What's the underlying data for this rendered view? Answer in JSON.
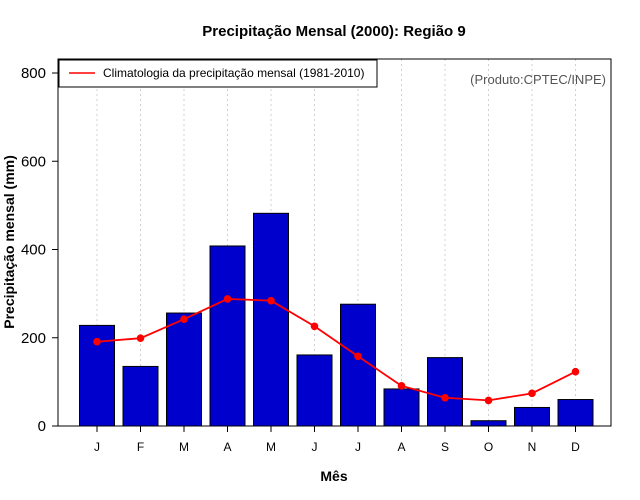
{
  "chart_data": {
    "type": "bar",
    "title": "Precipitação Mensal (2000): Região 9",
    "xlabel": "Mês",
    "ylabel": "Precipitação mensal (mm)",
    "ylim": [
      0,
      800
    ],
    "yticks": [
      0,
      200,
      400,
      600,
      800
    ],
    "categories": [
      "J",
      "F",
      "M",
      "A",
      "M",
      "J",
      "J",
      "A",
      "S",
      "O",
      "N",
      "D"
    ],
    "grid": "vertical dotted",
    "series": [
      {
        "name": "Precipitação mensal (2000)",
        "type": "bar",
        "color": "#0000CD",
        "values": [
          228,
          135,
          256,
          408,
          482,
          161,
          276,
          84,
          155,
          12,
          42,
          60
        ]
      },
      {
        "name": "Climatologia da precipitação mensal (1981-2010)",
        "type": "line",
        "color": "#FF0000",
        "values": [
          191,
          199,
          242,
          288,
          284,
          226,
          158,
          91,
          64,
          58,
          74,
          123
        ]
      }
    ],
    "legend": {
      "position": "top-left",
      "entries": [
        "Climatologia da precipitação mensal (1981-2010)"
      ]
    },
    "annotation": "(Produto:CPTEC/INPE)"
  }
}
